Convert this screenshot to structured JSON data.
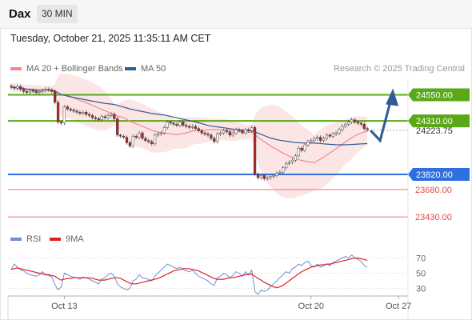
{
  "header": {
    "symbol": "Dax",
    "timeframe": "30 MIN"
  },
  "timestamp": "Tuesday, October 21, 2025 11:35:11 AM CET",
  "credit": "Research © 2025 Trading Central",
  "legend": {
    "ma20_bb": "MA 20 + Bollinger Bands",
    "ma50": "MA 50",
    "rsi": "RSI",
    "rsi_ma": "9MA"
  },
  "colors": {
    "ma20": "#f08a8a",
    "ma50": "#2e5c94",
    "bollinger_fill": "#fbdcdc",
    "resistance": "#5aa818",
    "pivot": "#2f6fe0",
    "support": "#e04848",
    "rsi": "#6f8fd6",
    "rsi_ma": "#e02020",
    "candle": "#b22222",
    "arrow": "#2e5c94"
  },
  "chart_data": [
    {
      "type": "candlestick",
      "title": "",
      "price_range": [
        23350,
        24700
      ],
      "x_tick_labels": [
        {
          "label": "Oct 13",
          "index": 17
        },
        {
          "label": "Oct 20",
          "index": 96
        },
        {
          "label": "Oct 27",
          "index": 124
        }
      ],
      "current_price": {
        "label": "24223.75",
        "value": 24223.75
      },
      "levels": [
        {
          "label": "24550.00",
          "value": 24550,
          "kind": "resistance"
        },
        {
          "label": "24310.00",
          "value": 24310,
          "kind": "resistance"
        },
        {
          "label": "23820.00",
          "value": 23820,
          "kind": "pivot"
        },
        {
          "label": "23680.00",
          "value": 23680,
          "kind": "support"
        },
        {
          "label": "23430.00",
          "value": 23430,
          "kind": "support"
        }
      ],
      "closes": [
        24620,
        24610,
        24625,
        24600,
        24580,
        24575,
        24590,
        24585,
        24570,
        24580,
        24590,
        24600,
        24595,
        24580,
        24480,
        24300,
        24290,
        24440,
        24420,
        24410,
        24400,
        24390,
        24380,
        24390,
        24370,
        24360,
        24340,
        24330,
        24320,
        24350,
        24340,
        24360,
        24370,
        24330,
        24180,
        24170,
        24160,
        24110,
        24080,
        24170,
        24160,
        24200,
        24150,
        24130,
        24120,
        24100,
        24180,
        24190,
        24200,
        24250,
        24300,
        24290,
        24280,
        24270,
        24300,
        24270,
        24260,
        24250,
        24260,
        24240,
        24220,
        24200,
        24190,
        24180,
        24150,
        24120,
        24190,
        24200,
        24220,
        24210,
        24180,
        24200,
        24230,
        24220,
        24200,
        24230,
        24220,
        24250,
        23820,
        23790,
        23810,
        23780,
        23790,
        23800,
        23810,
        23830,
        23840,
        23880,
        23920,
        23930,
        23950,
        23990,
        24060,
        24040,
        24090,
        24120,
        24130,
        24150,
        24160,
        24130,
        24150,
        24180,
        24170,
        24190,
        24200,
        24230,
        24260,
        24280,
        24300,
        24320,
        24300,
        24290,
        24280,
        24240,
        24230
      ],
      "ma20_range": [
        24620,
        24250
      ],
      "projection": {
        "path": [
          24223.75,
          24130,
          24520
        ],
        "target": 24550
      }
    },
    {
      "type": "line",
      "title": "",
      "y_tick_labels": [
        70,
        50,
        30
      ],
      "series": [
        {
          "name": "RSI",
          "values": [
            55,
            62,
            58,
            54,
            53,
            50,
            48,
            47,
            46,
            48,
            52,
            48,
            47,
            45,
            35,
            28,
            32,
            50,
            48,
            46,
            45,
            44,
            42,
            45,
            44,
            42,
            40,
            38,
            36,
            42,
            44,
            48,
            50,
            46,
            36,
            32,
            30,
            28,
            30,
            40,
            42,
            48,
            44,
            43,
            42,
            40,
            46,
            50,
            54,
            58,
            62,
            60,
            58,
            56,
            58,
            55,
            53,
            52,
            54,
            50,
            46,
            44,
            42,
            40,
            36,
            34,
            44,
            46,
            50,
            48,
            44,
            47,
            52,
            50,
            46,
            52,
            48,
            54,
            26,
            22,
            28,
            26,
            28,
            32,
            36,
            40,
            44,
            48,
            52,
            50,
            56,
            58,
            62,
            60,
            64,
            66,
            60,
            58,
            62,
            58,
            60,
            62,
            60,
            64,
            66,
            68,
            70,
            72,
            70,
            74,
            70,
            68,
            66,
            60,
            58
          ]
        },
        {
          "name": "9MA",
          "values": [
            55,
            56,
            57,
            56,
            55,
            54,
            53,
            52,
            51,
            50,
            49,
            48,
            48,
            47,
            46,
            43,
            41,
            42,
            43,
            43,
            44,
            44,
            44,
            44,
            44,
            44,
            43,
            42,
            41,
            41,
            41,
            42,
            43,
            44,
            44,
            43,
            41,
            39,
            37,
            36,
            36,
            37,
            38,
            39,
            40,
            41,
            42,
            43,
            45,
            47,
            49,
            51,
            53,
            54,
            55,
            56,
            56,
            56,
            55,
            54,
            53,
            51,
            49,
            47,
            45,
            43,
            42,
            42,
            42,
            43,
            44,
            44,
            45,
            46,
            47,
            48,
            48,
            49,
            46,
            43,
            41,
            38,
            36,
            34,
            32,
            31,
            32,
            34,
            37,
            40,
            43,
            46,
            49,
            52,
            54,
            56,
            58,
            59,
            60,
            61,
            61,
            62,
            62,
            63,
            64,
            65,
            66,
            67,
            68,
            69,
            70,
            70,
            69,
            68,
            67
          ]
        }
      ]
    }
  ]
}
